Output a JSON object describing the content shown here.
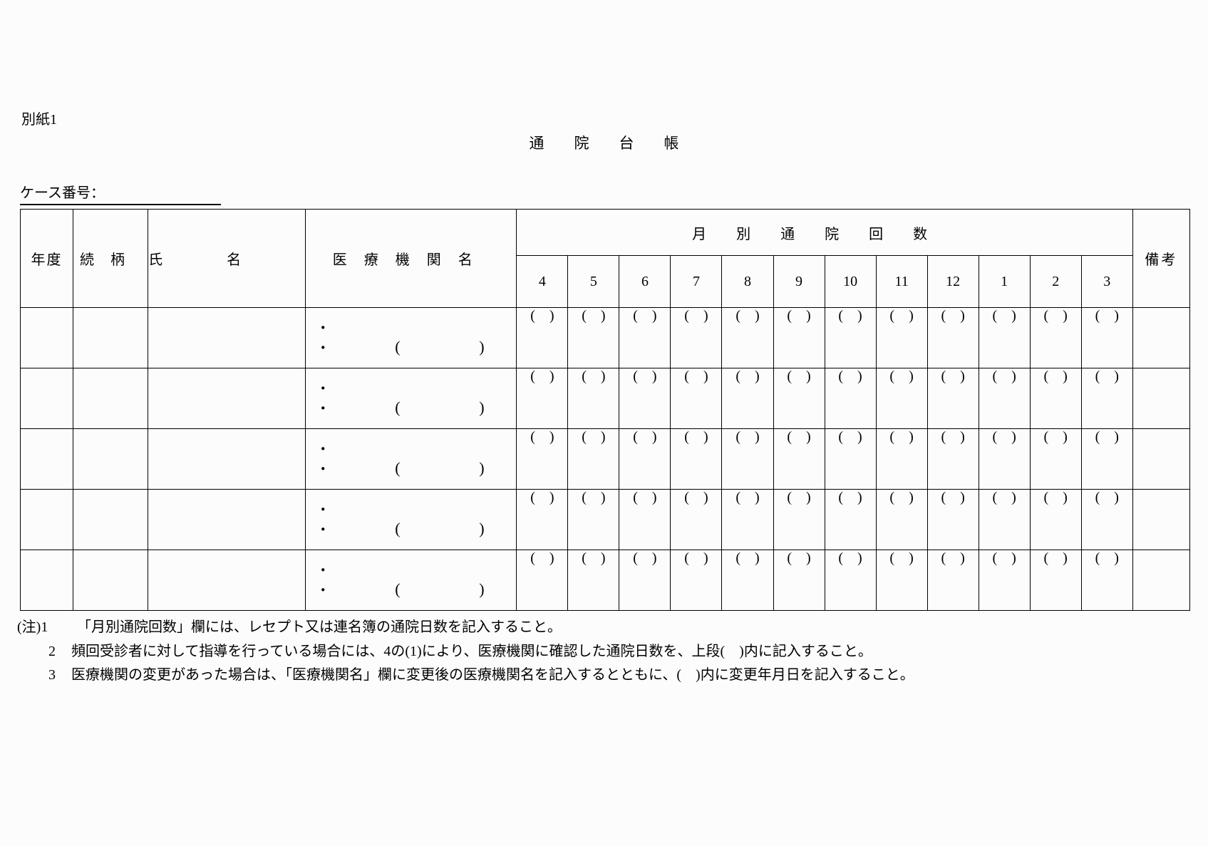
{
  "page": {
    "attachment_label": "別紙1",
    "title": "通院台帳",
    "case_number_label": "ケース番号："
  },
  "table": {
    "headers": {
      "year": "年度",
      "relationship": "続柄",
      "name": "氏名",
      "medical_institution": "医療機関名",
      "monthly_visits": "月別通院回数",
      "remarks": "備考"
    },
    "months": [
      "4",
      "5",
      "6",
      "7",
      "8",
      "9",
      "10",
      "11",
      "12",
      "1",
      "2",
      "3"
    ],
    "row_count": 5,
    "placeholders": {
      "month_cell": "(　)",
      "bullet": "・",
      "inst_paren_open": "(",
      "inst_paren_close": ")"
    }
  },
  "notes": [
    {
      "prefix": "(注)1",
      "text": "「月別通院回数」欄には、レセプト又は連名簿の通院日数を記入すること。"
    },
    {
      "prefix": "2",
      "text": "頻回受診者に対して指導を行っている場合には、4の(1)により、医療機関に確認した通院日数を、上段(　)内に記入すること。"
    },
    {
      "prefix": "3",
      "text": "医療機関の変更があった場合は、「医療機関名」欄に変更後の医療機関名を記入するとともに、(　)内に変更年月日を記入すること。"
    }
  ]
}
